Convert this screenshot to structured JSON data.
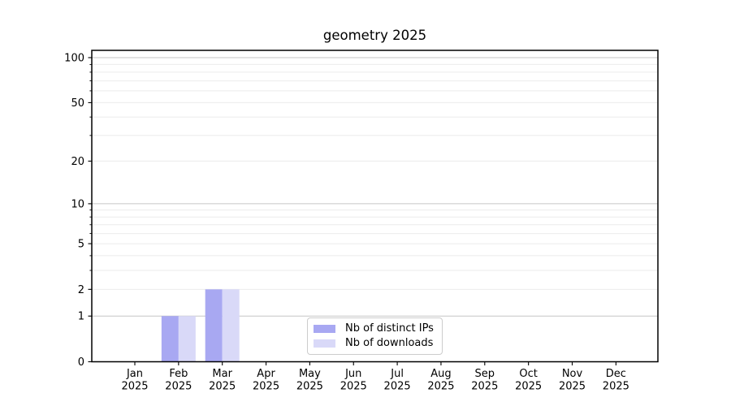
{
  "chart_data": {
    "type": "bar",
    "title": "geometry 2025",
    "categories": [
      "Jan",
      "Feb",
      "Mar",
      "Apr",
      "May",
      "Jun",
      "Jul",
      "Aug",
      "Sep",
      "Oct",
      "Nov",
      "Dec"
    ],
    "category_year_label": "2025",
    "series": [
      {
        "name": "Nb of distinct IPs",
        "color": "#a8a8f2",
        "values": [
          0,
          1,
          2,
          0,
          0,
          0,
          0,
          0,
          0,
          0,
          0,
          0
        ]
      },
      {
        "name": "Nb of downloads",
        "color": "#d9d9f8",
        "values": [
          0,
          1,
          2,
          0,
          0,
          0,
          0,
          0,
          0,
          0,
          0,
          0
        ]
      }
    ],
    "xlabel": "",
    "ylabel": "",
    "yscale": "log(1+y)",
    "ylim": [
      0,
      111.8
    ],
    "yticks_labeled": [
      0,
      1,
      2,
      5,
      10,
      20,
      50,
      100
    ],
    "yticks_minor": [
      3,
      4,
      6,
      7,
      8,
      9,
      30,
      40,
      60,
      70,
      80,
      90
    ],
    "grid": "horizontal",
    "grid_major_values": [
      1,
      10,
      100
    ],
    "grid_major_color": "#c6c6c6",
    "grid_minor_color": "#ebebeb",
    "axis_color": "#000000",
    "legend_position": "lower-center"
  }
}
